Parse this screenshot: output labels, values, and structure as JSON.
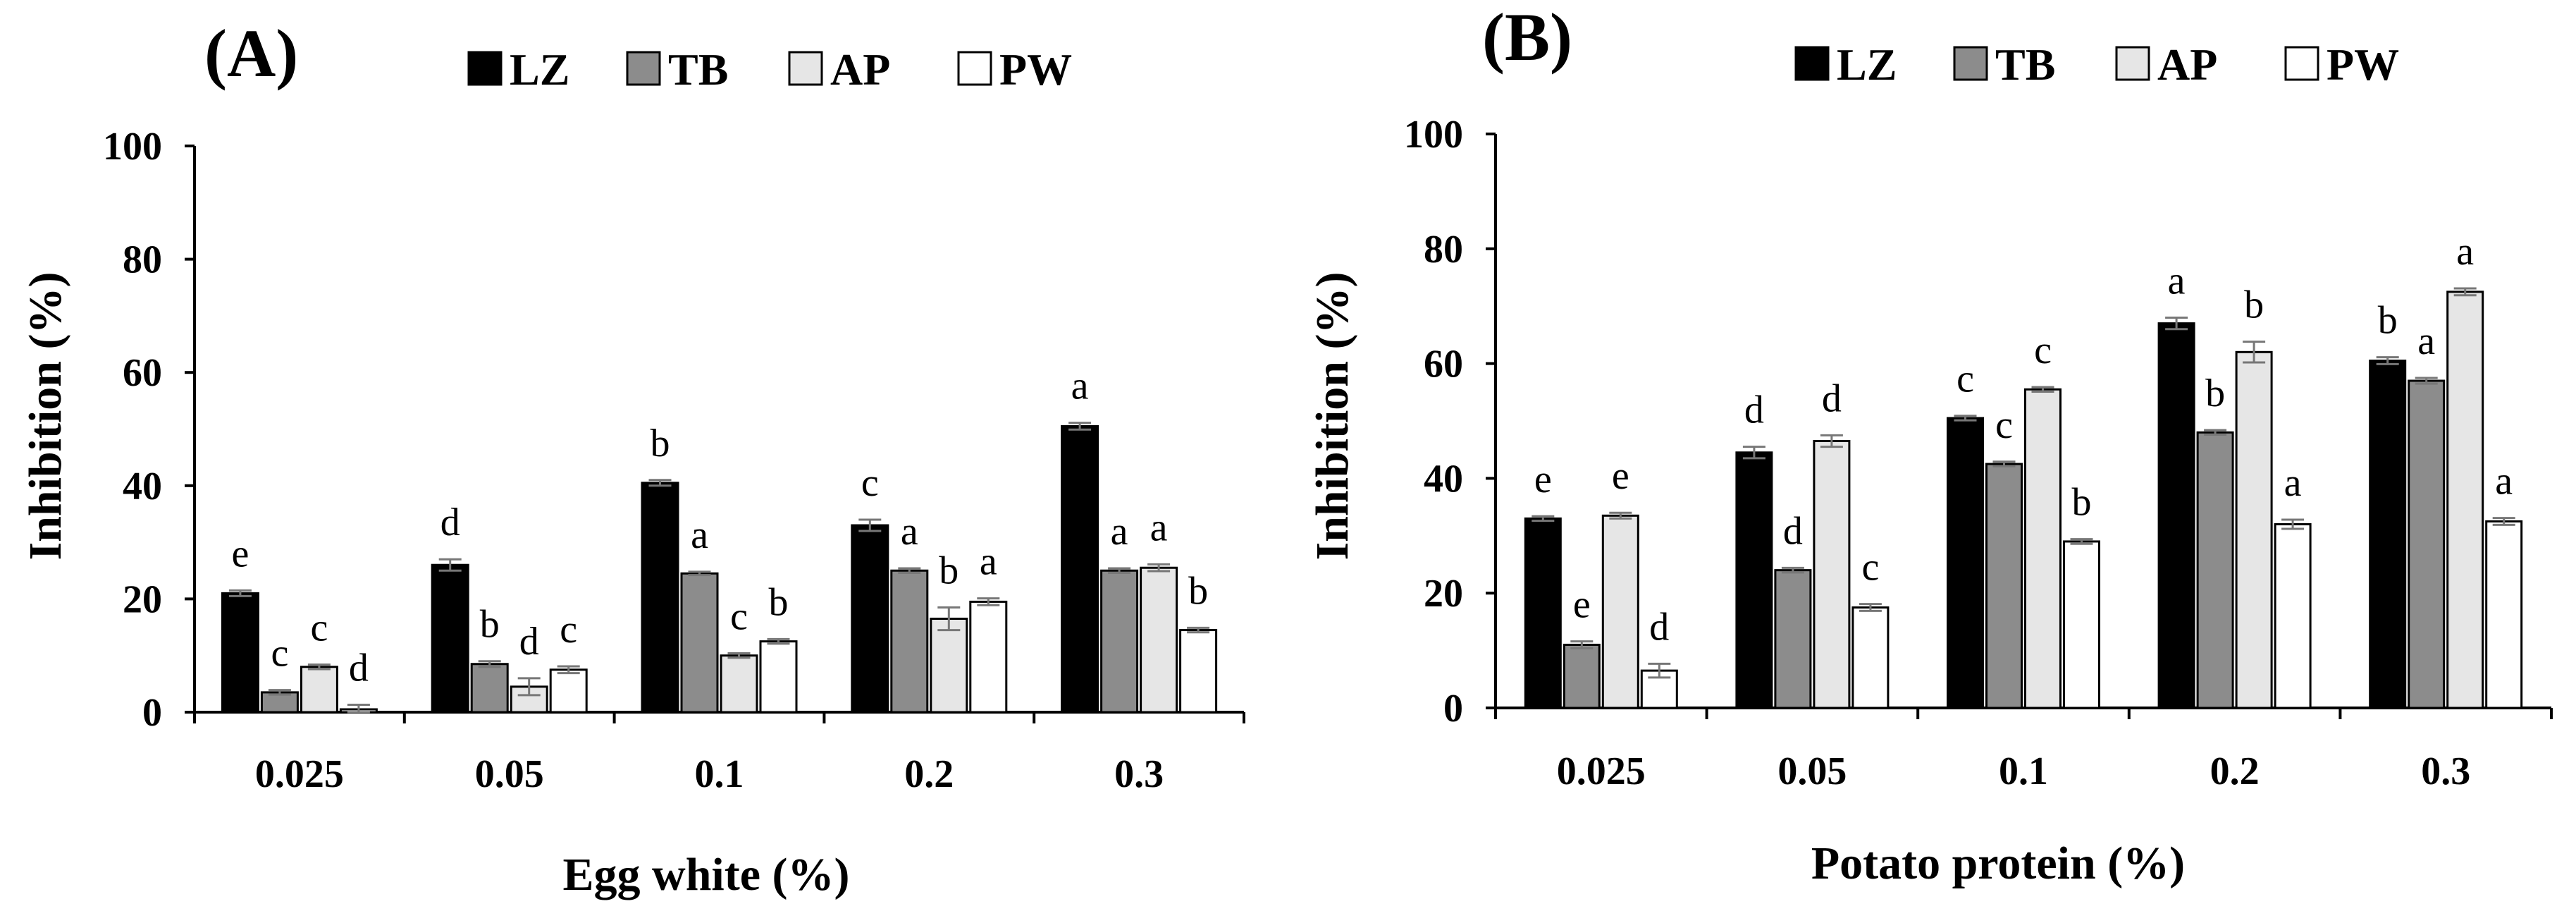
{
  "chart_data": [
    {
      "type": "bar",
      "panel_label": "(A)",
      "xlabel": "Egg white (%)",
      "ylabel": "Inhibition (%)",
      "ylim": [
        0,
        100
      ],
      "yticks": [
        "0",
        "20",
        "40",
        "60",
        "80",
        "100"
      ],
      "categories": [
        "0.025",
        "0.05",
        "0.1",
        "0.2",
        "0.3"
      ],
      "legend": [
        "LZ",
        "TB",
        "AP",
        "PW"
      ],
      "series": [
        {
          "name": "LZ",
          "color": "#000000",
          "values": [
            21,
            26,
            40.5,
            33,
            50.5
          ],
          "errors": [
            0.5,
            1.0,
            0.5,
            1.0,
            0.6
          ],
          "letters": [
            "e",
            "d",
            "b",
            "c",
            "a"
          ]
        },
        {
          "name": "TB",
          "color": "#8c8c8c",
          "values": [
            3.5,
            8.5,
            24.5,
            25,
            25
          ],
          "errors": [
            0.4,
            0.5,
            0.3,
            0.4,
            0.4
          ],
          "letters": [
            "c",
            "b",
            "a",
            "a",
            "a"
          ]
        },
        {
          "name": "AP",
          "color": "#e6e6e6",
          "values": [
            8,
            4.5,
            10,
            16.5,
            25.5
          ],
          "errors": [
            0.4,
            1.5,
            0.4,
            2.0,
            0.6
          ],
          "letters": [
            "c",
            "d",
            "c",
            "b",
            "a"
          ]
        },
        {
          "name": "PW",
          "color": "#ffffff",
          "values": [
            0.5,
            7.5,
            12.5,
            19.5,
            14.5
          ],
          "errors": [
            0.8,
            0.6,
            0.4,
            0.6,
            0.4
          ],
          "letters": [
            "d",
            "c",
            "b",
            "a",
            "b"
          ]
        }
      ]
    },
    {
      "type": "bar",
      "panel_label": "(B)",
      "xlabel": "Potato protein (%)",
      "ylabel": "Inhibition (%)",
      "ylim": [
        0,
        100
      ],
      "yticks": [
        "0",
        "20",
        "40",
        "60",
        "80",
        "100"
      ],
      "categories": [
        "0.025",
        "0.05",
        "0.1",
        "0.2",
        "0.3"
      ],
      "legend": [
        "LZ",
        "TB",
        "AP",
        "PW"
      ],
      "series": [
        {
          "name": "LZ",
          "color": "#000000",
          "values": [
            33,
            44.5,
            50.5,
            67,
            60.5
          ],
          "errors": [
            0.4,
            1.0,
            0.4,
            1.0,
            0.6
          ],
          "letters": [
            "e",
            "d",
            "c",
            "a",
            "b"
          ]
        },
        {
          "name": "TB",
          "color": "#8c8c8c",
          "values": [
            11,
            24,
            42.5,
            48,
            57
          ],
          "errors": [
            0.6,
            0.4,
            0.4,
            0.4,
            0.5
          ],
          "letters": [
            "e",
            "d",
            "c",
            "b",
            "a"
          ]
        },
        {
          "name": "AP",
          "color": "#e6e6e6",
          "values": [
            33.5,
            46.5,
            55.5,
            62,
            72.5
          ],
          "errors": [
            0.5,
            1.0,
            0.4,
            1.8,
            0.6
          ],
          "letters": [
            "e",
            "d",
            "c",
            "b",
            "a"
          ]
        },
        {
          "name": "PW",
          "color": "#ffffff",
          "values": [
            6.5,
            17.5,
            29,
            32,
            32.5
          ],
          "errors": [
            1.2,
            0.6,
            0.4,
            0.8,
            0.6
          ],
          "letters": [
            "d",
            "c",
            "b",
            "a",
            "a"
          ]
        }
      ]
    }
  ]
}
